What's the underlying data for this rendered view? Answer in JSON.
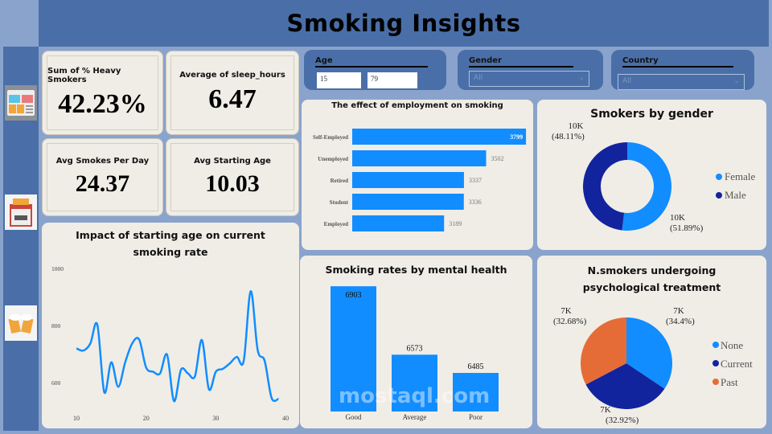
{
  "header": {
    "title": "Smoking Insights"
  },
  "sidebar": {
    "icons": [
      "dashboard-icon",
      "cigarette-pack-icon",
      "beer-mugs-icon"
    ]
  },
  "kpis": [
    {
      "label": "Sum of % Heavy Smokers",
      "value": "42.23%"
    },
    {
      "label": "Average of sleep_hours",
      "value": "6.47"
    },
    {
      "label": "Avg Smokes Per Day",
      "value": "24.37"
    },
    {
      "label": "Avg Starting Age",
      "value": "10.03"
    }
  ],
  "filters": {
    "age": {
      "label": "Age",
      "min": "15",
      "max": "79"
    },
    "gender": {
      "label": "Gender",
      "value": "All"
    },
    "country": {
      "label": "Country",
      "value": "All"
    }
  },
  "colors": {
    "primary": "#118dff",
    "dark": "#12239e",
    "orange": "#e66c37",
    "card": "#f0ede6",
    "header": "#4a6fa8"
  },
  "chart_data": [
    {
      "type": "bar",
      "orientation": "horizontal",
      "title": "The effect of employment on smoking",
      "categories": [
        "Self-Employed",
        "Unemployed",
        "Retired",
        "Student",
        "Employed"
      ],
      "values": [
        3799,
        3502,
        3337,
        3336,
        3189
      ]
    },
    {
      "type": "pie",
      "donut": true,
      "title": "Smokers by gender",
      "slices": [
        {
          "name": "Female",
          "value": "10K",
          "percent": 51.89,
          "label": "10K",
          "pct_label": "(51.89%)"
        },
        {
          "name": "Male",
          "value": "10K",
          "percent": 48.11,
          "label": "10K",
          "pct_label": "(48.11%)"
        }
      ],
      "legend": "right"
    },
    {
      "type": "line",
      "title": "Impact of starting age on current smoking rate",
      "x": [
        10,
        11,
        12,
        13,
        14,
        15,
        16,
        17,
        18,
        19,
        20,
        21,
        22,
        23,
        24,
        25,
        26,
        27,
        28,
        29,
        30,
        31,
        32,
        33,
        34,
        35,
        36,
        37,
        38,
        39
      ],
      "y": [
        720,
        712,
        737,
        803,
        566,
        671,
        585,
        671,
        737,
        751,
        653,
        638,
        632,
        698,
        535,
        645,
        632,
        622,
        749,
        577,
        638,
        648,
        667,
        690,
        676,
        920,
        714,
        676,
        546,
        543
      ],
      "xticks": [
        "10",
        "20",
        "30",
        "40"
      ],
      "yticks": [
        "600",
        "800",
        "1000"
      ],
      "xlim": [
        10,
        40
      ],
      "ylim": [
        500,
        1000
      ]
    },
    {
      "type": "bar",
      "title": "Smoking rates by mental health",
      "categories": [
        "Good",
        "Average",
        "Poor"
      ],
      "values": [
        6903,
        6573,
        6485
      ]
    },
    {
      "type": "pie",
      "title": "N.smokers undergoing psychological treatment",
      "slices": [
        {
          "name": "None",
          "percent": 34.4,
          "label": "7K",
          "pct_label": "(34.4%)"
        },
        {
          "name": "Current",
          "percent": 32.92,
          "label": "7K",
          "pct_label": "(32.92%)"
        },
        {
          "name": "Past",
          "percent": 32.68,
          "label": "7K",
          "pct_label": "(32.68%)"
        }
      ],
      "legend": "right"
    }
  ],
  "watermark": "mostaql.com"
}
